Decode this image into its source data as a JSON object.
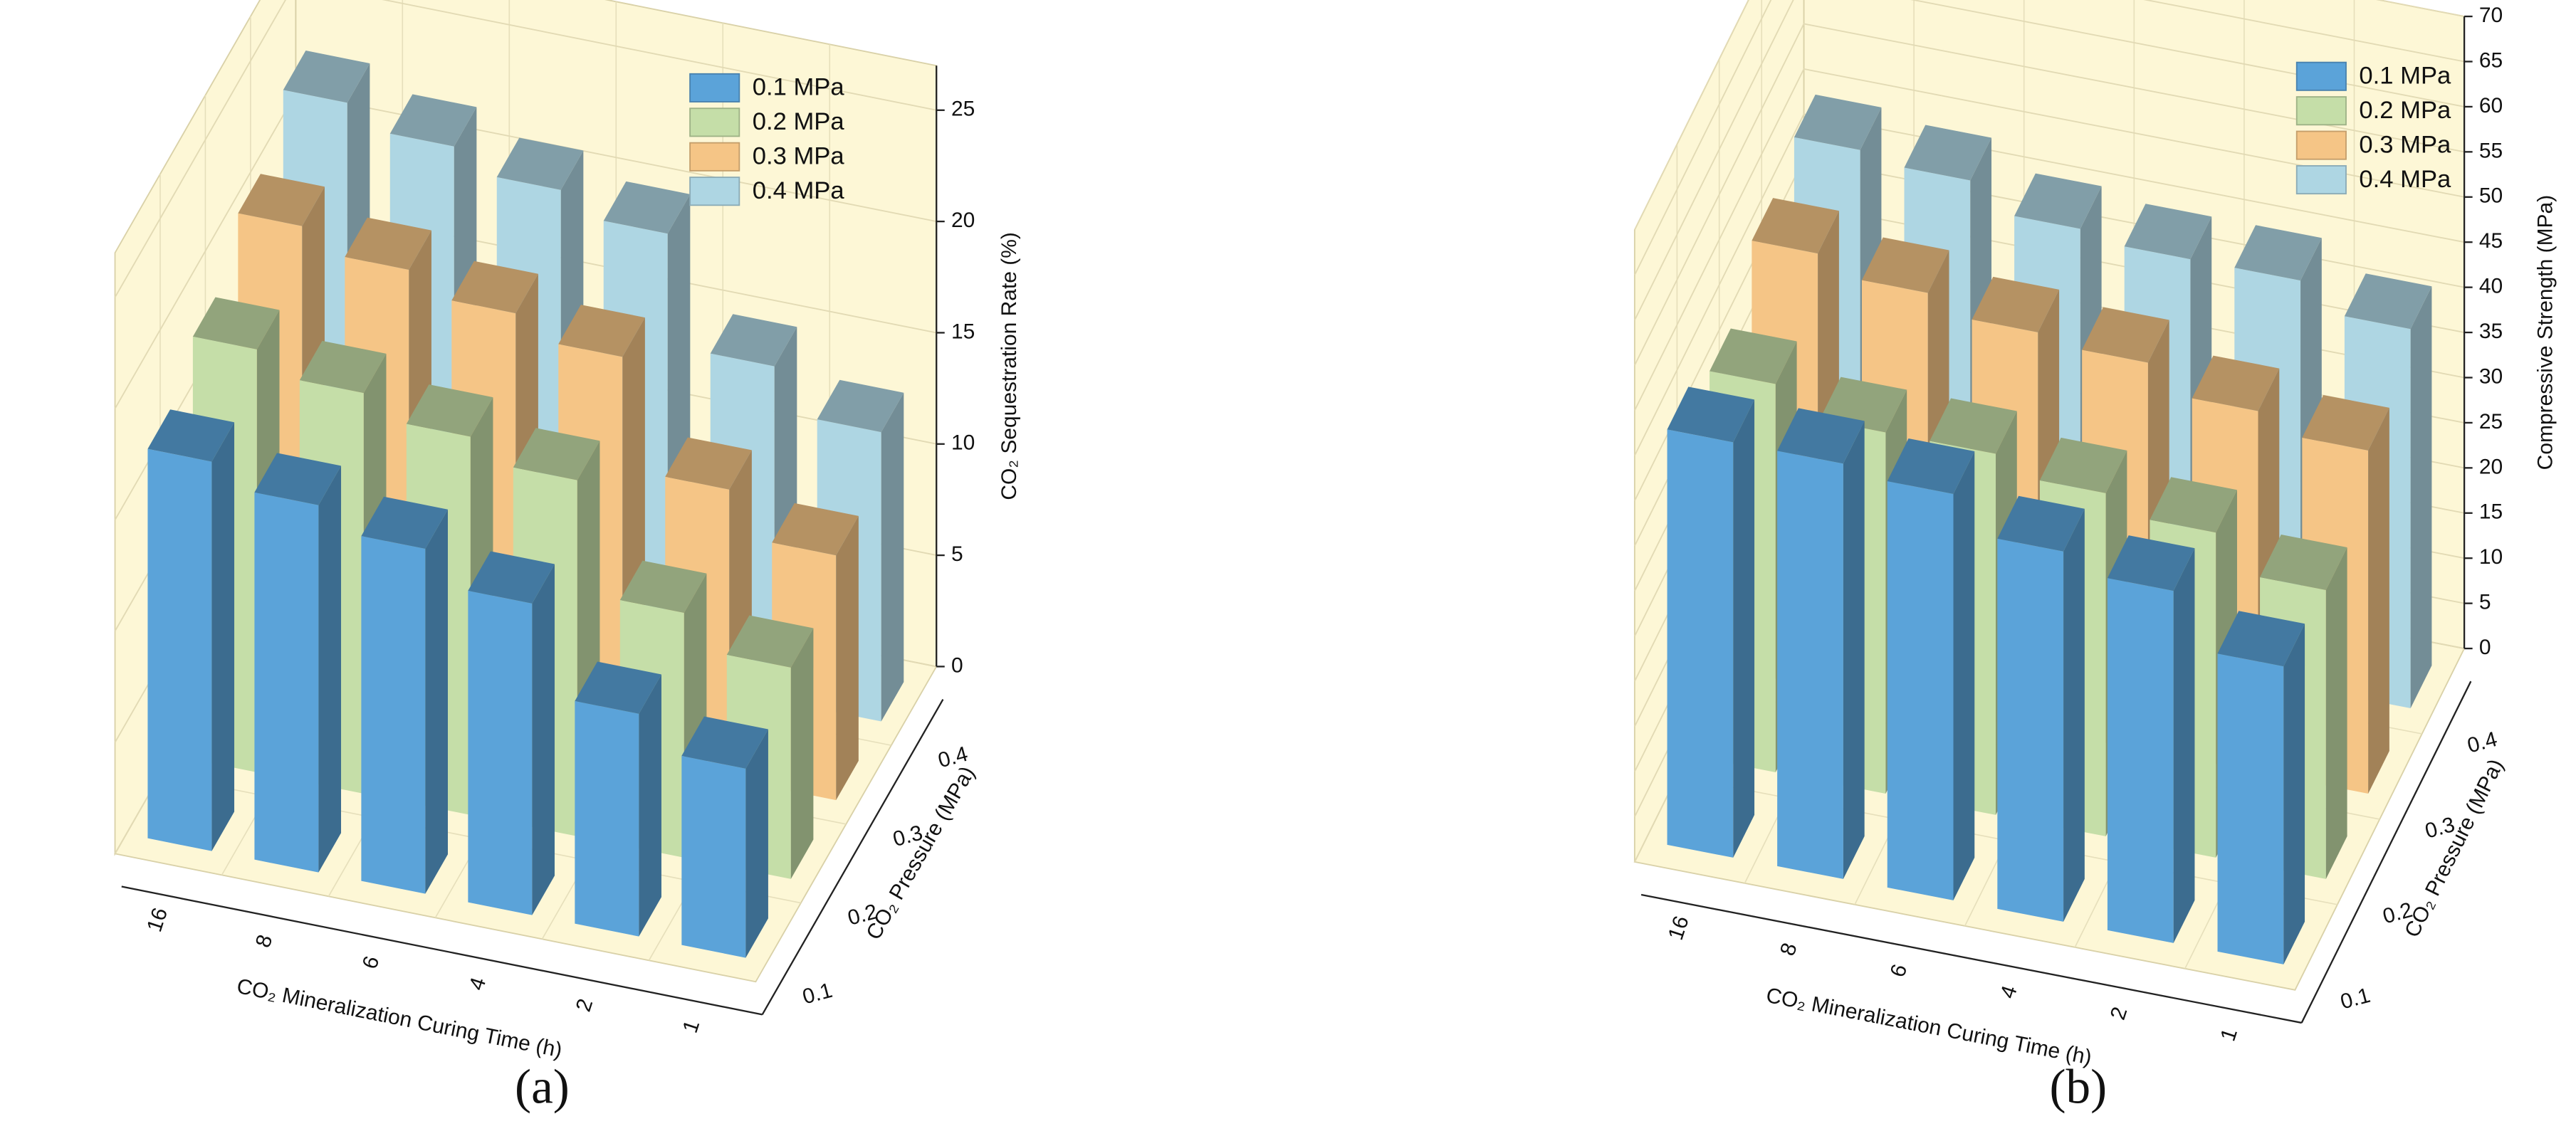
{
  "chart_data": [
    {
      "type": "bar3d",
      "label": "(a)",
      "y_label": "CO₂ Sequestration Rate (%)",
      "x_label": "CO₂ Mineralization Curing Time (h)",
      "z_label": "CO₂ Pressure (MPa)",
      "categories": [
        "16",
        "8",
        "6",
        "4",
        "2",
        "1"
      ],
      "zcategories": [
        "0.1",
        "0.2",
        "0.3",
        "0.4"
      ],
      "ylim": [
        0,
        27
      ],
      "yticks": [
        0,
        5,
        10,
        15,
        20,
        25
      ],
      "legend": "upper right",
      "grid": true,
      "series": [
        {
          "name": "0.1 MPa",
          "color": "#5ba3d9",
          "values": [
            17.5,
            16.5,
            15.5,
            14,
            10,
            8.5
          ]
        },
        {
          "name": "0.2 MPa",
          "color": "#c5dea8",
          "values": [
            19,
            18,
            17,
            16,
            11,
            9.5
          ]
        },
        {
          "name": "0.3 MPa",
          "color": "#f5c586",
          "values": [
            21,
            20,
            19,
            18,
            13,
            11
          ]
        },
        {
          "name": "0.4 MPa",
          "color": "#aed6e3",
          "values": [
            23,
            22,
            21,
            20,
            15,
            13
          ]
        }
      ]
    },
    {
      "type": "bar3d",
      "label": "(b)",
      "y_label": "Compressive Strength (MPa)",
      "x_label": "CO₂ Mineralization Curing Time (h)",
      "z_label": "CO₂ Pressure (MPa)",
      "categories": [
        "16",
        "8",
        "6",
        "4",
        "2",
        "1"
      ],
      "zcategories": [
        "0.1",
        "0.2",
        "0.3",
        "0.4"
      ],
      "ylim": [
        0,
        70
      ],
      "yticks": [
        0,
        5,
        10,
        15,
        20,
        25,
        30,
        35,
        40,
        45,
        50,
        55,
        60,
        65,
        70
      ],
      "legend": "upper right",
      "grid": true,
      "series": [
        {
          "name": "0.1 MPa",
          "color": "#5ba3d9",
          "values": [
            46,
            46,
            45,
            41,
            39,
            33
          ]
        },
        {
          "name": "0.2 MPa",
          "color": "#c5dea8",
          "values": [
            43,
            40,
            40,
            38,
            36,
            32
          ]
        },
        {
          "name": "0.3 MPa",
          "color": "#f5c586",
          "values": [
            48,
            46,
            44,
            43,
            40,
            38
          ]
        },
        {
          "name": "0.4 MPa",
          "color": "#aed6e3",
          "values": [
            50,
            49,
            46,
            45,
            45,
            42
          ]
        }
      ]
    }
  ]
}
